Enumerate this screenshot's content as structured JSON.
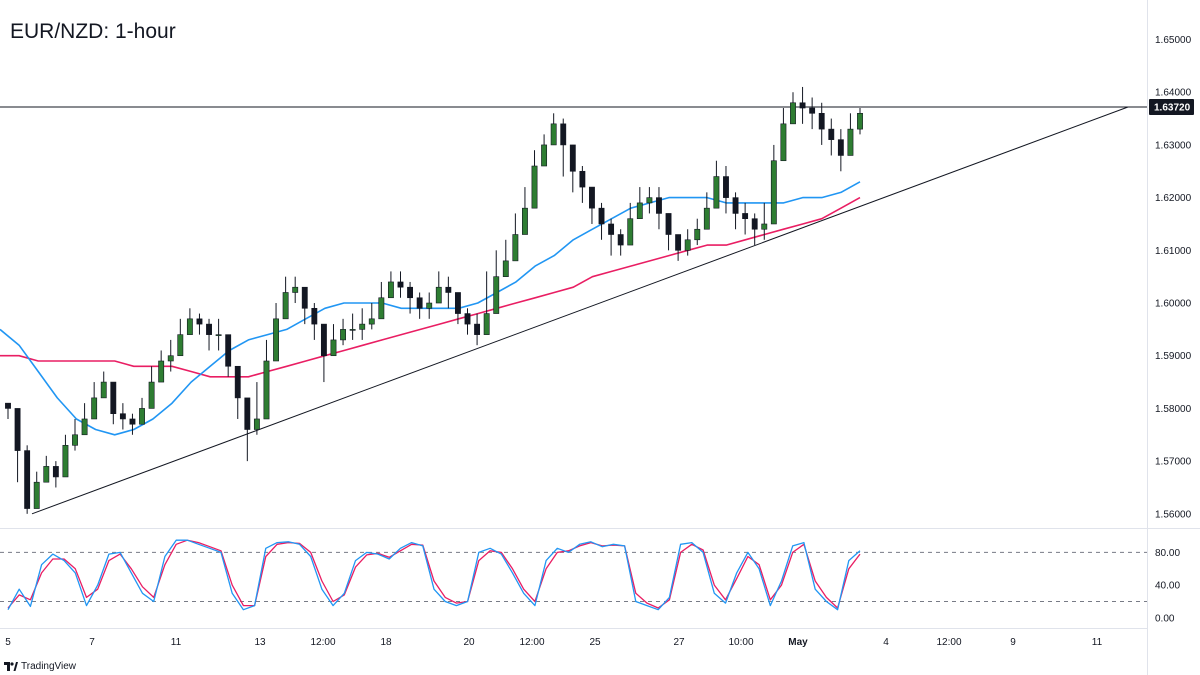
{
  "title": "EUR/NZD: 1-hour",
  "brand": "TradingView",
  "colors": {
    "up": "#26a69a",
    "down": "#131722",
    "candle_up_body": "#2e7d32",
    "ma_fast": "#2196f3",
    "ma_slow": "#e91e63",
    "stoch_k": "#2196f3",
    "stoch_d": "#e91e63",
    "line": "#131722"
  },
  "chart_data": [
    {
      "type": "line",
      "title": "EUR/NZD: 1-hour",
      "x_ticks": [
        "5",
        "7",
        "11",
        "13",
        "12:00",
        "18",
        "20",
        "12:00",
        "25",
        "27",
        "10:00",
        "May",
        "4",
        "12:00",
        "9",
        "11"
      ],
      "y_ticks": [
        "1.56000",
        "1.57000",
        "1.58000",
        "1.59000",
        "1.60000",
        "1.61000",
        "1.62000",
        "1.63000",
        "1.64000",
        "1.65000"
      ],
      "ylim": [
        1.5575,
        1.6575
      ],
      "price_label": "1.63720",
      "horizontal_level": 1.6372,
      "series": [
        {
          "kind": "close",
          "values": [
            1.58,
            1.572,
            1.561,
            1.566,
            1.569,
            1.567,
            1.573,
            1.575,
            1.578,
            1.582,
            1.585,
            1.579,
            1.578,
            1.577,
            1.58,
            1.585,
            1.589,
            1.59,
            1.594,
            1.597,
            1.596,
            1.594,
            1.594,
            1.588,
            1.582,
            1.576,
            1.578,
            1.589,
            1.597,
            1.602,
            1.603,
            1.599,
            1.596,
            1.59,
            1.593,
            1.595,
            1.595,
            1.596,
            1.597,
            1.601,
            1.604,
            1.603,
            1.601,
            1.599,
            1.6,
            1.603,
            1.602,
            1.598,
            1.596,
            1.594,
            1.598,
            1.605,
            1.608,
            1.613,
            1.618,
            1.626,
            1.63,
            1.634,
            1.63,
            1.625,
            1.622,
            1.618,
            1.615,
            1.613,
            1.611,
            1.616,
            1.619,
            1.62,
            1.617,
            1.613,
            1.61,
            1.612,
            1.614,
            1.618,
            1.624,
            1.62,
            1.617,
            1.616,
            1.614,
            1.615,
            1.627,
            1.634,
            1.638,
            1.637,
            1.636,
            1.633,
            1.631,
            1.628,
            1.633,
            1.636
          ]
        },
        {
          "kind": "high",
          "values": [
            1.581,
            1.58,
            1.573,
            1.568,
            1.571,
            1.57,
            1.575,
            1.578,
            1.581,
            1.585,
            1.587,
            1.583,
            1.581,
            1.579,
            1.582,
            1.588,
            1.591,
            1.593,
            1.597,
            1.599,
            1.598,
            1.597,
            1.597,
            1.594,
            1.588,
            1.58,
            1.585,
            1.593,
            1.6,
            1.605,
            1.605,
            1.603,
            1.6,
            1.596,
            1.596,
            1.597,
            1.598,
            1.599,
            1.6,
            1.604,
            1.606,
            1.606,
            1.604,
            1.602,
            1.602,
            1.606,
            1.605,
            1.602,
            1.599,
            1.598,
            1.606,
            1.61,
            1.612,
            1.617,
            1.622,
            1.629,
            1.632,
            1.636,
            1.635,
            1.63,
            1.626,
            1.622,
            1.619,
            1.616,
            1.614,
            1.619,
            1.622,
            1.622,
            1.622,
            1.617,
            1.613,
            1.614,
            1.616,
            1.621,
            1.627,
            1.626,
            1.621,
            1.619,
            1.617,
            1.619,
            1.63,
            1.637,
            1.64,
            1.641,
            1.639,
            1.638,
            1.635,
            1.633,
            1.636,
            1.637
          ]
        },
        {
          "kind": "low",
          "values": [
            1.578,
            1.566,
            1.56,
            1.563,
            1.566,
            1.565,
            1.57,
            1.572,
            1.575,
            1.579,
            1.582,
            1.577,
            1.576,
            1.575,
            1.577,
            1.582,
            1.586,
            1.587,
            1.591,
            1.594,
            1.594,
            1.591,
            1.591,
            1.586,
            1.578,
            1.57,
            1.575,
            1.585,
            1.593,
            1.599,
            1.6,
            1.596,
            1.593,
            1.585,
            1.59,
            1.592,
            1.593,
            1.593,
            1.595,
            1.598,
            1.601,
            1.601,
            1.598,
            1.597,
            1.597,
            1.6,
            1.599,
            1.596,
            1.594,
            1.592,
            1.595,
            1.603,
            1.606,
            1.61,
            1.615,
            1.622,
            1.627,
            1.63,
            1.624,
            1.621,
            1.619,
            1.615,
            1.612,
            1.609,
            1.609,
            1.612,
            1.616,
            1.617,
            1.614,
            1.61,
            1.608,
            1.609,
            1.611,
            1.614,
            1.619,
            1.617,
            1.614,
            1.613,
            1.611,
            1.612,
            1.615,
            1.63,
            1.634,
            1.634,
            1.633,
            1.63,
            1.628,
            1.625,
            1.628,
            1.632
          ]
        },
        {
          "kind": "moving_average_fast",
          "values": [
            1.595,
            1.592,
            1.587,
            1.582,
            1.578,
            1.576,
            1.575,
            1.576,
            1.578,
            1.581,
            1.585,
            1.588,
            1.591,
            1.593,
            1.594,
            1.595,
            1.597,
            1.599,
            1.6,
            1.6,
            1.6,
            1.599,
            1.599,
            1.599,
            1.599,
            1.6,
            1.602,
            1.604,
            1.607,
            1.609,
            1.612,
            1.614,
            1.616,
            1.618,
            1.619,
            1.62,
            1.62,
            1.62,
            1.619,
            1.619,
            1.619,
            1.619,
            1.62,
            1.62,
            1.621,
            1.623
          ]
        },
        {
          "kind": "moving_average_slow",
          "values": [
            1.59,
            1.59,
            1.589,
            1.589,
            1.589,
            1.589,
            1.589,
            1.588,
            1.588,
            1.588,
            1.587,
            1.586,
            1.586,
            1.586,
            1.587,
            1.588,
            1.589,
            1.59,
            1.591,
            1.592,
            1.593,
            1.594,
            1.595,
            1.596,
            1.597,
            1.598,
            1.599,
            1.6,
            1.601,
            1.602,
            1.603,
            1.605,
            1.606,
            1.607,
            1.608,
            1.609,
            1.61,
            1.611,
            1.611,
            1.612,
            1.613,
            1.614,
            1.615,
            1.616,
            1.618,
            1.62
          ]
        }
      ],
      "trendline": {
        "from": 1.56,
        "to": 1.6372
      }
    },
    {
      "type": "line",
      "title": "",
      "y_ticks": [
        "0.00",
        "40.00",
        "80.00"
      ],
      "ylim": [
        -10,
        105
      ],
      "bands": [
        20,
        80
      ],
      "series": [
        {
          "kind": "stoch_k",
          "values": [
            10,
            35,
            14,
            65,
            78,
            70,
            55,
            15,
            40,
            78,
            80,
            55,
            30,
            20,
            75,
            95,
            95,
            90,
            85,
            80,
            30,
            10,
            15,
            85,
            92,
            93,
            90,
            75,
            35,
            15,
            30,
            70,
            80,
            78,
            72,
            85,
            92,
            88,
            35,
            20,
            15,
            20,
            80,
            85,
            78,
            55,
            30,
            15,
            70,
            85,
            80,
            90,
            93,
            87,
            90,
            88,
            20,
            15,
            10,
            25,
            90,
            92,
            80,
            30,
            18,
            55,
            80,
            60,
            15,
            45,
            88,
            92,
            35,
            20,
            10,
            70,
            82
          ]
        },
        {
          "kind": "stoch_d",
          "values": [
            12,
            28,
            22,
            55,
            72,
            72,
            60,
            25,
            35,
            70,
            78,
            60,
            38,
            25,
            65,
            90,
            95,
            92,
            87,
            82,
            40,
            15,
            15,
            75,
            90,
            92,
            91,
            80,
            45,
            20,
            28,
            62,
            77,
            79,
            74,
            82,
            90,
            89,
            45,
            25,
            18,
            20,
            70,
            82,
            80,
            60,
            35,
            20,
            60,
            80,
            82,
            88,
            92,
            88,
            89,
            88,
            30,
            18,
            12,
            22,
            80,
            90,
            83,
            40,
            22,
            48,
            75,
            65,
            22,
            40,
            80,
            90,
            45,
            25,
            12,
            60,
            78
          ]
        }
      ]
    }
  ]
}
